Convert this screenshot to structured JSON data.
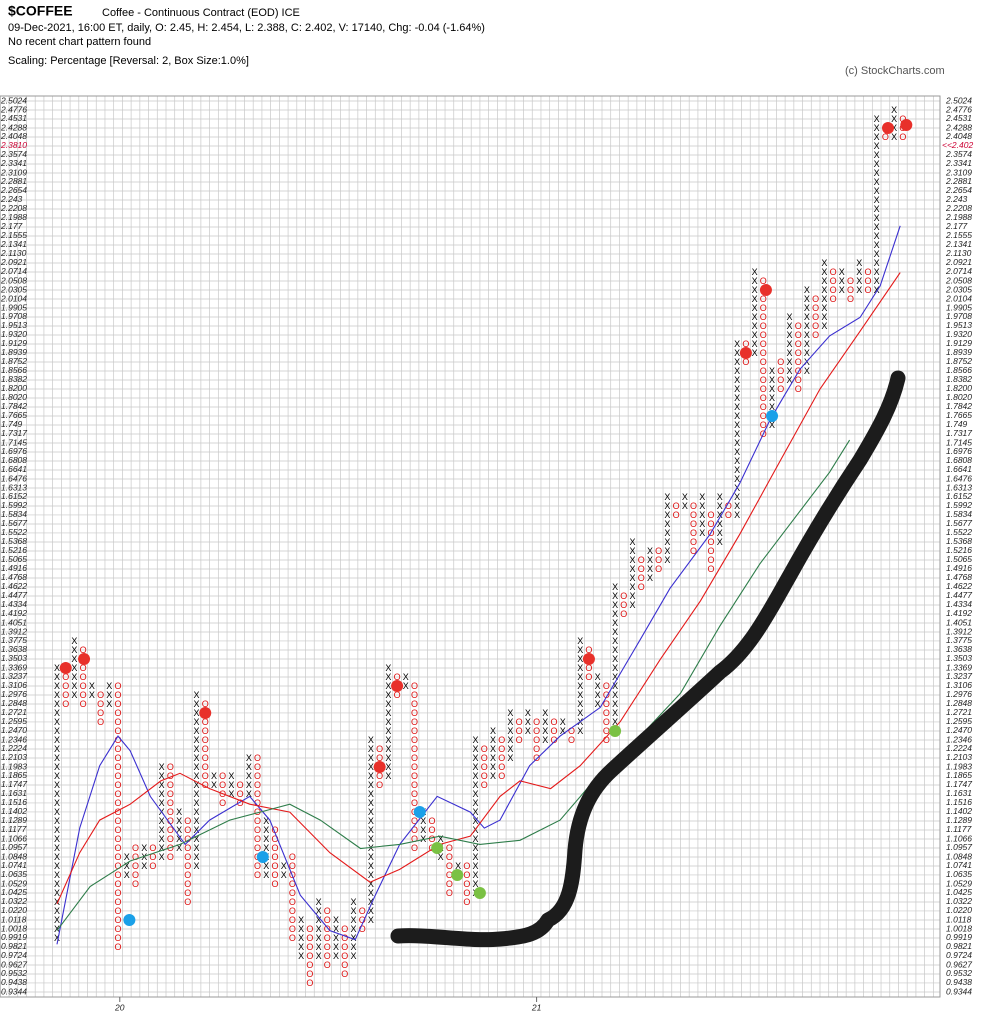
{
  "chart_data": {
    "type": "pnf",
    "title": "$COFFEE",
    "subtitle": "Coffee - Continuous Contract (EOD) ICE",
    "info": "09-Dec-2021, 16:00 ET, daily, O: 2.45, H: 2.454, L: 2.388, C: 2.402, V: 17140, Chg: -0.04 (-1.64%)",
    "pattern_note": "No recent chart pattern found",
    "scaling": "Scaling: Percentage [Reversal: 2, Box Size:1.0%]",
    "copyright": "(c) StockCharts.com",
    "log": true,
    "grid": true,
    "x_color": "#000000",
    "o_color": "#dd1111",
    "last_price": {
      "value": 2.402,
      "label": "<<2.402"
    },
    "last_color": "#cc0033",
    "ylim": [
      0.9344,
      2.5024
    ],
    "yticks": [
      2.5024,
      2.4776,
      2.4531,
      2.4288,
      2.4048,
      {
        "value": 2.381,
        "label": "2.3810"
      },
      2.3574,
      2.3341,
      2.3109,
      2.2881,
      2.2654,
      2.243,
      2.2208,
      2.1988,
      2.177,
      2.1555,
      2.1341,
      {
        "value": 2.113,
        "label": "2.1130"
      },
      2.0921,
      2.0714,
      2.0508,
      2.0305,
      2.0104,
      1.9905,
      1.9708,
      1.9513,
      {
        "value": 1.932,
        "label": "1.9320"
      },
      1.9129,
      1.8939,
      1.8752,
      1.8566,
      1.8382,
      {
        "value": 1.82,
        "label": "1.8200"
      },
      {
        "value": 1.802,
        "label": "1.8020"
      },
      1.7842,
      1.7665,
      1.749,
      1.7317,
      1.7145,
      1.6976,
      1.6808,
      1.6641,
      1.6476,
      1.6313,
      1.6152,
      1.5992,
      1.5834,
      1.5677,
      1.5522,
      1.5368,
      1.5216,
      1.5065,
      1.4916,
      1.4768,
      1.4622,
      1.4477,
      1.4334,
      1.4192,
      1.4051,
      1.3912,
      1.3775,
      1.3638,
      1.3503,
      1.3369,
      1.3237,
      1.3106,
      1.2976,
      1.2848,
      1.2721,
      1.2595,
      {
        "value": 1.247,
        "label": "1.2470"
      },
      1.2346,
      1.2224,
      1.2103,
      1.1983,
      1.1865,
      1.1747,
      1.1631,
      1.1516,
      1.1402,
      1.1289,
      1.1177,
      1.1066,
      1.0957,
      1.0848,
      1.0741,
      1.0635,
      1.0529,
      1.0425,
      1.0322,
      {
        "value": 1.022,
        "label": "1.0220"
      },
      1.0118,
      1.0018,
      0.9919,
      0.9821,
      0.9724,
      0.9627,
      0.9532,
      0.9438,
      0.9344
    ],
    "xticks": [
      {
        "value": 7.2,
        "label": "20"
      },
      {
        "value": 55,
        "label": "21"
      }
    ],
    "columns": [
      {
        "dir": "X",
        "low": 0.9919,
        "high": 1.3369
      },
      {
        "dir": "O",
        "low": 1.2848,
        "high": 1.3369
      },
      {
        "dir": "X",
        "low": 1.2976,
        "high": 1.3775
      },
      {
        "dir": "O",
        "low": 1.2848,
        "high": 1.3638
      },
      {
        "dir": "X",
        "low": 1.2976,
        "high": 1.3106
      },
      {
        "dir": "O",
        "low": 1.2595,
        "high": 1.2976
      },
      {
        "dir": "X",
        "low": 1.2848,
        "high": 1.3106
      },
      {
        "dir": "O",
        "low": 0.9821,
        "high": 1.3106
      },
      {
        "dir": "X",
        "low": 1.0635,
        "high": 1.0848
      },
      {
        "dir": "O",
        "low": 1.0529,
        "high": 1.0957
      },
      {
        "dir": "X",
        "low": 1.0741,
        "high": 1.0957
      },
      {
        "dir": "O",
        "low": 1.0741,
        "high": 1.0957
      },
      {
        "dir": "X",
        "low": 1.0848,
        "high": 1.1983
      },
      {
        "dir": "O",
        "low": 1.0848,
        "high": 1.1983
      },
      {
        "dir": "X",
        "low": 1.0957,
        "high": 1.1402
      },
      {
        "dir": "O",
        "low": 1.0322,
        "high": 1.1289
      },
      {
        "dir": "X",
        "low": 1.0741,
        "high": 1.2976
      },
      {
        "dir": "O",
        "low": 1.1747,
        "high": 1.2848
      },
      {
        "dir": "X",
        "low": 1.1747,
        "high": 1.1865
      },
      {
        "dir": "O",
        "low": 1.1516,
        "high": 1.1865
      },
      {
        "dir": "X",
        "low": 1.1631,
        "high": 1.1865
      },
      {
        "dir": "O",
        "low": 1.1516,
        "high": 1.1747
      },
      {
        "dir": "X",
        "low": 1.1631,
        "high": 1.2103
      },
      {
        "dir": "O",
        "low": 1.0635,
        "high": 1.2103
      },
      {
        "dir": "X",
        "low": 1.0635,
        "high": 1.1289
      },
      {
        "dir": "O",
        "low": 1.0529,
        "high": 1.1177
      },
      {
        "dir": "X",
        "low": 1.0635,
        "high": 1.0741
      },
      {
        "dir": "O",
        "low": 0.9919,
        "high": 1.0848
      },
      {
        "dir": "X",
        "low": 0.9724,
        "high": 1.0118
      },
      {
        "dir": "O",
        "low": 0.9438,
        "high": 1.0018
      },
      {
        "dir": "X",
        "low": 0.9724,
        "high": 1.0322
      },
      {
        "dir": "O",
        "low": 0.9627,
        "high": 1.022
      },
      {
        "dir": "X",
        "low": 0.9724,
        "high": 1.0118
      },
      {
        "dir": "O",
        "low": 0.9532,
        "high": 1.0018
      },
      {
        "dir": "X",
        "low": 0.9724,
        "high": 1.0322
      },
      {
        "dir": "O",
        "low": 1.0018,
        "high": 1.022
      },
      {
        "dir": "X",
        "low": 1.0118,
        "high": 1.2346
      },
      {
        "dir": "O",
        "low": 1.1747,
        "high": 1.2224
      },
      {
        "dir": "X",
        "low": 1.1865,
        "high": 1.3369
      },
      {
        "dir": "O",
        "low": 1.2976,
        "high": 1.3237
      },
      {
        "dir": "X",
        "low": 1.3106,
        "high": 1.3237
      },
      {
        "dir": "O",
        "low": 1.0957,
        "high": 1.3106
      },
      {
        "dir": "X",
        "low": 1.1066,
        "high": 1.1402
      },
      {
        "dir": "O",
        "low": 1.0957,
        "high": 1.1289
      },
      {
        "dir": "X",
        "low": 1.0848,
        "high": 1.1066
      },
      {
        "dir": "O",
        "low": 1.0425,
        "high": 1.0957
      },
      {
        "dir": "X",
        "low": 1.0635,
        "high": 1.0741
      },
      {
        "dir": "O",
        "low": 1.0322,
        "high": 1.0741
      },
      {
        "dir": "X",
        "low": 1.0425,
        "high": 1.2346
      },
      {
        "dir": "O",
        "low": 1.1747,
        "high": 1.2224
      },
      {
        "dir": "X",
        "low": 1.1865,
        "high": 1.247
      },
      {
        "dir": "O",
        "low": 1.1865,
        "high": 1.2346
      },
      {
        "dir": "X",
        "low": 1.2103,
        "high": 1.2721
      },
      {
        "dir": "O",
        "low": 1.2346,
        "high": 1.2595
      },
      {
        "dir": "X",
        "low": 1.247,
        "high": 1.2721
      },
      {
        "dir": "O",
        "low": 1.2103,
        "high": 1.2595
      },
      {
        "dir": "X",
        "low": 1.2346,
        "high": 1.2721
      },
      {
        "dir": "O",
        "low": 1.2346,
        "high": 1.2595
      },
      {
        "dir": "X",
        "low": 1.247,
        "high": 1.2595
      },
      {
        "dir": "O",
        "low": 1.2346,
        "high": 1.247
      },
      {
        "dir": "X",
        "low": 1.247,
        "high": 1.3775
      },
      {
        "dir": "O",
        "low": 1.3237,
        "high": 1.3638
      },
      {
        "dir": "X",
        "low": 1.2848,
        "high": 1.3237
      },
      {
        "dir": "O",
        "low": 1.2346,
        "high": 1.3106
      },
      {
        "dir": "X",
        "low": 1.247,
        "high": 1.4622
      },
      {
        "dir": "O",
        "low": 1.4192,
        "high": 1.4477
      },
      {
        "dir": "X",
        "low": 1.4334,
        "high": 1.5368
      },
      {
        "dir": "O",
        "low": 1.4622,
        "high": 1.5065
      },
      {
        "dir": "X",
        "low": 1.4768,
        "high": 1.5216
      },
      {
        "dir": "O",
        "low": 1.4916,
        "high": 1.5216
      },
      {
        "dir": "X",
        "low": 1.5065,
        "high": 1.6152
      },
      {
        "dir": "O",
        "low": 1.5834,
        "high": 1.5992
      },
      {
        "dir": "X",
        "low": 1.5992,
        "high": 1.6152
      },
      {
        "dir": "O",
        "low": 1.5216,
        "high": 1.5992
      },
      {
        "dir": "X",
        "low": 1.5522,
        "high": 1.6152
      },
      {
        "dir": "O",
        "low": 1.4916,
        "high": 1.5834
      },
      {
        "dir": "X",
        "low": 1.5368,
        "high": 1.6152
      },
      {
        "dir": "O",
        "low": 1.5834,
        "high": 1.5992
      },
      {
        "dir": "X",
        "low": 1.5834,
        "high": 1.9129
      },
      {
        "dir": "O",
        "low": 1.8752,
        "high": 1.9129
      },
      {
        "dir": "X",
        "low": 1.8939,
        "high": 2.0714
      },
      {
        "dir": "O",
        "low": 1.7317,
        "high": 2.0508
      },
      {
        "dir": "X",
        "low": 1.749,
        "high": 1.8566
      },
      {
        "dir": "O",
        "low": 1.82,
        "high": 1.8752
      },
      {
        "dir": "X",
        "low": 1.8382,
        "high": 1.9708
      },
      {
        "dir": "O",
        "low": 1.82,
        "high": 1.9513
      },
      {
        "dir": "X",
        "low": 1.8566,
        "high": 2.0305
      },
      {
        "dir": "O",
        "low": 1.932,
        "high": 2.0104
      },
      {
        "dir": "X",
        "low": 1.9513,
        "high": 2.0921
      },
      {
        "dir": "O",
        "low": 2.0104,
        "high": 2.0714
      },
      {
        "dir": "X",
        "low": 2.0305,
        "high": 2.0714
      },
      {
        "dir": "O",
        "low": 2.0104,
        "high": 2.0508
      },
      {
        "dir": "X",
        "low": 2.0305,
        "high": 2.0921
      },
      {
        "dir": "O",
        "low": 2.0305,
        "high": 2.0714
      },
      {
        "dir": "X",
        "low": 2.0305,
        "high": 2.4531
      },
      {
        "dir": "O",
        "low": 2.4048,
        "high": 2.4288
      },
      {
        "dir": "X",
        "low": 2.4048,
        "high": 2.4776
      },
      {
        "dir": "O",
        "low": 2.4048,
        "high": 2.4531
      }
    ],
    "series": [
      {
        "color": "#3a2fd0",
        "x": [
          0,
          2.6,
          4.9,
          7,
          8.4,
          10.7,
          14.7,
          17.5,
          22.1,
          24.4,
          27.9,
          31.3,
          34.2,
          36.5,
          39.3,
          43.6,
          47.4,
          49,
          50.8,
          54.2,
          57.7,
          62.3,
          66.9,
          70.3,
          74.9,
          78.3,
          81.8,
          85.2,
          88.6,
          92.1,
          94.4,
          96.7
        ],
        "values": [
          0.985,
          1.12,
          1.2,
          1.24,
          1.22,
          1.16,
          1.1,
          1.13,
          1.16,
          1.13,
          1.04,
          1.0,
          0.99,
          1.04,
          1.1,
          1.16,
          1.14,
          1.12,
          1.13,
          1.2,
          1.24,
          1.28,
          1.38,
          1.46,
          1.55,
          1.64,
          1.76,
          1.86,
          1.93,
          1.97,
          2.04,
          2.18
        ]
      },
      {
        "color": "#e41a1a",
        "x": [
          0,
          2.6,
          4.9,
          8.4,
          11.9,
          14.1,
          17.5,
          22.1,
          26.7,
          31.3,
          35.9,
          39.3,
          43.9,
          47.4,
          50.8,
          53.1,
          56.6,
          60,
          64.6,
          69.2,
          73.8,
          78.3,
          82.9,
          87.5,
          92.1,
          96.7
        ],
        "values": [
          1.03,
          1.09,
          1.13,
          1.15,
          1.18,
          1.19,
          1.17,
          1.15,
          1.14,
          1.09,
          1.055,
          1.07,
          1.1,
          1.11,
          1.16,
          1.18,
          1.17,
          1.2,
          1.26,
          1.35,
          1.44,
          1.55,
          1.68,
          1.82,
          1.94,
          2.07
        ]
      },
      {
        "color": "#2e7d4a",
        "x": [
          0,
          3.8,
          8.4,
          14.1,
          19.8,
          23.3,
          26.7,
          30.2,
          34.8,
          39.3,
          43.9,
          48.5,
          53.1,
          57.7,
          62.3,
          66.9,
          71.5,
          76,
          80.6,
          85.2,
          88.6,
          90.9
        ],
        "values": [
          1.0,
          1.05,
          1.08,
          1.1,
          1.13,
          1.14,
          1.15,
          1.13,
          1.095,
          1.1,
          1.11,
          1.1,
          1.105,
          1.13,
          1.19,
          1.24,
          1.3,
          1.4,
          1.5,
          1.59,
          1.66,
          1.72
        ]
      }
    ],
    "markers": [
      {
        "x": 1,
        "value": 1.3369,
        "color": "#e8302a"
      },
      {
        "x": 3.1,
        "value": 1.3503,
        "color": "#e8302a"
      },
      {
        "x": 17,
        "value": 1.2721,
        "color": "#e8302a"
      },
      {
        "x": 37,
        "value": 1.1983,
        "color": "#e8302a"
      },
      {
        "x": 39,
        "value": 1.3106,
        "color": "#e8302a"
      },
      {
        "x": 61,
        "value": 1.3503,
        "color": "#e8302a"
      },
      {
        "x": 79,
        "value": 1.8939,
        "color": "#e8302a"
      },
      {
        "x": 81.3,
        "value": 2.0305,
        "color": "#e8302a"
      },
      {
        "x": 95.3,
        "value": 2.4288,
        "color": "#e8302a"
      },
      {
        "x": 97.4,
        "value": 2.437,
        "color": "#e8302a"
      },
      {
        "x": 8.3,
        "value": 1.0118,
        "color": "#1aa0e8"
      },
      {
        "x": 23.6,
        "value": 1.0848,
        "color": "#1aa0e8"
      },
      {
        "x": 41.6,
        "value": 1.1402,
        "color": "#1aa0e8"
      },
      {
        "x": 82,
        "value": 1.7665,
        "color": "#1aa0e8"
      },
      {
        "x": 43.6,
        "value": 1.0957,
        "color": "#7ac143"
      },
      {
        "x": 45.9,
        "value": 1.0635,
        "color": "#7ac143"
      },
      {
        "x": 48.5,
        "value": 1.0425,
        "color": "#7ac143"
      },
      {
        "x": 64,
        "value": 1.247,
        "color": "#7ac143"
      }
    ]
  }
}
